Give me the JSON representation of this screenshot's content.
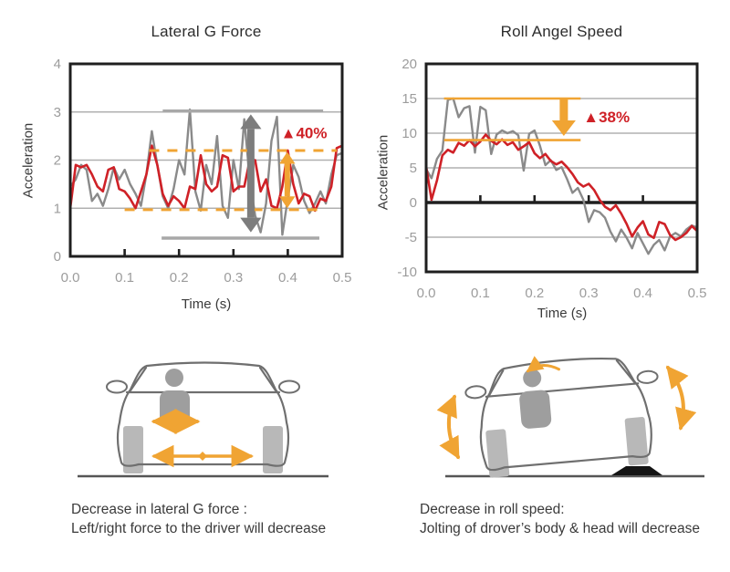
{
  "colors": {
    "red": "#cf2127",
    "gray": "#8a8a8a",
    "orange": "#f0a433",
    "arrow_gray": "#7d7d7d",
    "annotation_gray": "#a8a8a8",
    "grid": "#b0b0b0",
    "frame": "#1f1f1f",
    "tick_text": "#9c9c9c",
    "text": "#3a3a3a",
    "car_line": "#6f6f6f",
    "driver_gray": "#9e9e9e",
    "wheel_gray": "#b8b8b8",
    "ramp_black": "#141414",
    "ground_gray": "#555555"
  },
  "chart_data": [
    {
      "type": "line",
      "title": "Lateral G Force",
      "x_label": "Time (s)",
      "y_label": "Acceleration",
      "xlim": [
        0,
        0.5
      ],
      "ylim": [
        0,
        4
      ],
      "x_start": 0,
      "x_step": 0.01,
      "x_ticks": [
        {
          "v": 0.0,
          "label": "0.0"
        },
        {
          "v": 0.1,
          "label": "0.1"
        },
        {
          "v": 0.2,
          "label": "0.2"
        },
        {
          "v": 0.3,
          "label": "0.3"
        },
        {
          "v": 0.4,
          "label": "0.4"
        },
        {
          "v": 0.5,
          "label": "0.5"
        }
      ],
      "y_ticks": [
        {
          "v": 4,
          "label": "4"
        },
        {
          "v": 3,
          "label": "3"
        },
        {
          "v": 2,
          "label": "2"
        },
        {
          "v": 1,
          "label": "1"
        },
        {
          "v": 0,
          "label": "0"
        }
      ],
      "gridlines": [
        1,
        2,
        3
      ],
      "zero_line": false,
      "series": [
        {
          "name": "gray",
          "color": "gray",
          "width": 2.4,
          "values": [
            1.45,
            1.6,
            1.9,
            1.8,
            1.15,
            1.3,
            1.05,
            1.4,
            1.85,
            1.6,
            1.8,
            1.5,
            1.3,
            1.05,
            1.7,
            2.6,
            1.9,
            1.25,
            1.0,
            1.4,
            2.0,
            1.7,
            3.05,
            1.35,
            0.95,
            1.9,
            1.5,
            2.5,
            1.05,
            0.8,
            2.0,
            1.4,
            2.85,
            1.6,
            0.85,
            0.5,
            1.1,
            2.4,
            2.9,
            0.45,
            1.2,
            1.9,
            1.65,
            1.15,
            0.9,
            1.1,
            1.35,
            1.1,
            1.7,
            2.1,
            2.15
          ]
        },
        {
          "name": "red",
          "color": "red",
          "width": 2.6,
          "values": [
            1.0,
            1.9,
            1.85,
            1.9,
            1.7,
            1.45,
            1.35,
            1.8,
            1.85,
            1.4,
            1.35,
            1.2,
            1.0,
            1.35,
            1.7,
            2.3,
            1.9,
            1.3,
            1.05,
            1.25,
            1.15,
            1.0,
            1.45,
            1.4,
            2.1,
            1.5,
            1.35,
            1.45,
            2.1,
            2.05,
            1.35,
            1.45,
            1.45,
            2.0,
            2.0,
            1.35,
            1.6,
            1.05,
            1.0,
            1.45,
            2.2,
            1.5,
            1.1,
            1.3,
            1.25,
            0.95,
            1.2,
            1.15,
            1.45,
            2.25,
            2.3
          ]
        }
      ],
      "annotations": [
        {
          "type": "hline",
          "y": 3.02,
          "x1": 0.17,
          "x2": 0.465,
          "color": "annotation_gray",
          "width": 3.5
        },
        {
          "type": "hline",
          "y": 0.38,
          "x1": 0.168,
          "x2": 0.458,
          "color": "annotation_gray",
          "width": 3.5
        },
        {
          "type": "hline",
          "y": 2.2,
          "x1": 0.145,
          "x2": 0.49,
          "color": "orange",
          "width": 3,
          "dash": "11,9"
        },
        {
          "type": "hline",
          "y": 0.97,
          "x1": 0.1,
          "x2": 0.46,
          "color": "orange",
          "width": 3,
          "dash": "11,9"
        },
        {
          "type": "varrow",
          "x": 0.332,
          "y1": 0.5,
          "y2": 2.95,
          "color": "arrow_gray",
          "shaft": 8,
          "head": 16,
          "double": true
        },
        {
          "type": "varrow",
          "x": 0.399,
          "y1": 1.0,
          "y2": 2.17,
          "color": "orange",
          "shaft": 6,
          "head": 13,
          "double": true
        },
        {
          "type": "label",
          "x": 0.387,
          "y": 2.57,
          "text": "▲40%",
          "color": "red",
          "size": 17
        }
      ]
    },
    {
      "type": "line",
      "title": "Roll Angel Speed",
      "x_label": "Time (s)",
      "y_label": "Acceleration",
      "xlim": [
        0,
        0.5
      ],
      "ylim": [
        -10,
        20
      ],
      "x_start": 0,
      "x_step": 0.01,
      "x_ticks": [
        {
          "v": 0.0,
          "label": "0.0"
        },
        {
          "v": 0.1,
          "label": "0.1"
        },
        {
          "v": 0.2,
          "label": "0.2"
        },
        {
          "v": 0.3,
          "label": "0.3"
        },
        {
          "v": 0.4,
          "label": "0.4"
        },
        {
          "v": 0.5,
          "label": "0.5"
        }
      ],
      "y_ticks": [
        {
          "v": 20,
          "label": "20"
        },
        {
          "v": 15,
          "label": "15"
        },
        {
          "v": 10,
          "label": "10"
        },
        {
          "v": 5,
          "label": "5"
        },
        {
          "v": 0,
          "label": "0"
        },
        {
          "v": -5,
          "label": "-5"
        },
        {
          "v": -10,
          "label": "-10"
        }
      ],
      "gridlines": [
        15,
        10,
        5,
        -5
      ],
      "zero_line": true,
      "series": [
        {
          "name": "gray",
          "color": "gray",
          "width": 2.4,
          "values": [
            4.8,
            3.5,
            6.3,
            7.5,
            14.8,
            15.0,
            12.3,
            13.6,
            13.9,
            7.2,
            13.8,
            13.3,
            7.0,
            9.8,
            10.4,
            10.0,
            10.3,
            9.7,
            4.6,
            9.9,
            10.4,
            8.2,
            5.4,
            6.1,
            4.7,
            5.1,
            3.4,
            1.4,
            2.1,
            0.4,
            -2.8,
            -1.1,
            -1.4,
            -2.2,
            -4.2,
            -5.6,
            -3.9,
            -5.1,
            -6.6,
            -4.4,
            -5.9,
            -7.4,
            -6.1,
            -5.4,
            -6.9,
            -4.9,
            -4.4,
            -4.9,
            -3.9,
            -3.3,
            -3.6
          ]
        },
        {
          "name": "red",
          "color": "red",
          "width": 2.6,
          "values": [
            5.2,
            0.4,
            3.2,
            6.8,
            7.6,
            7.2,
            8.6,
            8.2,
            9.0,
            8.1,
            8.8,
            9.8,
            8.9,
            8.4,
            9.1,
            8.3,
            8.7,
            7.6,
            8.1,
            8.7,
            7.1,
            6.4,
            7.0,
            6.0,
            5.5,
            5.9,
            5.1,
            4.1,
            2.9,
            2.3,
            2.7,
            1.8,
            0.4,
            -0.6,
            -1.1,
            -0.4,
            -1.6,
            -3.1,
            -4.9,
            -3.6,
            -2.7,
            -4.6,
            -5.1,
            -2.8,
            -3.1,
            -4.7,
            -5.4,
            -5.0,
            -4.4,
            -3.4,
            -4.1
          ]
        }
      ],
      "annotations": [
        {
          "type": "hline",
          "y": 15,
          "x1": 0.033,
          "x2": 0.285,
          "color": "orange",
          "width": 2.6
        },
        {
          "type": "hline",
          "y": 9,
          "x1": 0.033,
          "x2": 0.285,
          "color": "orange",
          "width": 2.6
        },
        {
          "type": "varrow",
          "x": 0.254,
          "y1": 15,
          "y2": 9.6,
          "color": "orange",
          "shaft": 9,
          "head": 17,
          "double": false
        },
        {
          "type": "label",
          "x": 0.29,
          "y": 12.4,
          "text": "▲38%",
          "color": "red",
          "size": 17
        }
      ]
    }
  ],
  "captions": {
    "left": {
      "line1": "Decrease in lateral G force :",
      "line2": "Left/right force to the driver will decrease"
    },
    "right": {
      "line1": "Decrease in roll speed:",
      "line2": "Jolting of drover’s body & head will decrease"
    }
  }
}
